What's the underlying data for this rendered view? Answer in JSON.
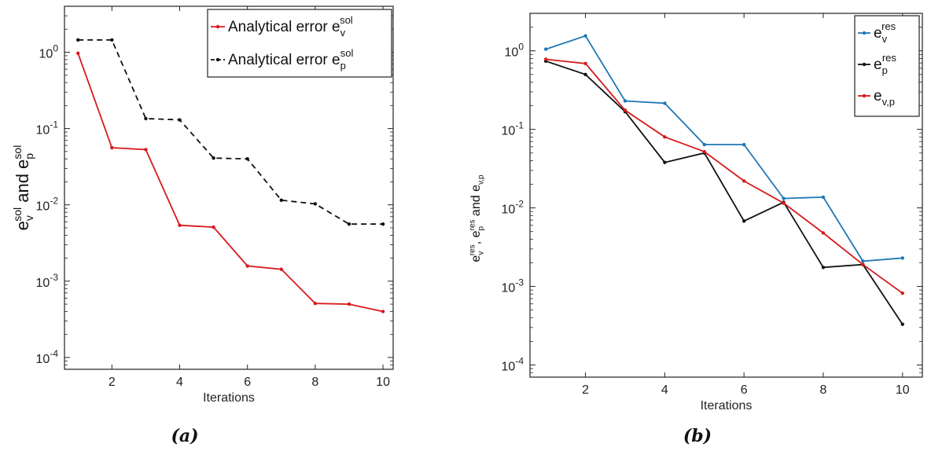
{
  "chart_data": [
    {
      "type": "line",
      "panel": "(a)",
      "xlabel": "Iterations",
      "ylabel": {
        "parts": [
          "e",
          "v",
          "sol",
          " and ",
          "e",
          "p",
          "sol"
        ]
      },
      "yscale": "log",
      "xlim": [
        0.6,
        10.3
      ],
      "ylim": [
        7e-05,
        4
      ],
      "xticks": [
        2,
        4,
        6,
        8,
        10
      ],
      "yticks": [
        {
          "value": 1,
          "exp": "0"
        },
        {
          "value": 0.1,
          "exp": "-1"
        },
        {
          "value": 0.01,
          "exp": "-2"
        },
        {
          "value": 0.001,
          "exp": "-3"
        },
        {
          "value": 0.0001,
          "exp": "-4"
        }
      ],
      "legend_position": "top-right",
      "x": [
        1,
        2,
        3,
        4,
        5,
        6,
        7,
        8,
        9,
        10
      ],
      "series": [
        {
          "name": "Analytical error e",
          "sub": "v",
          "sup": "sol",
          "color": "#d7191c",
          "dash": "solid",
          "values": [
            0.97,
            0.056,
            0.053,
            0.0054,
            0.0051,
            0.00158,
            0.00143,
            0.00051,
            0.0005,
            0.0004
          ]
        },
        {
          "name": "Analytical error e",
          "sub": "p",
          "sup": "sol",
          "color": "#111111",
          "dash": "dashed",
          "values": [
            1.45,
            1.45,
            0.135,
            0.13,
            0.041,
            0.04,
            0.0115,
            0.0103,
            0.0056,
            0.0056
          ]
        }
      ]
    },
    {
      "type": "line",
      "panel": "(b)",
      "xlabel": "Iterations",
      "ylabel": {
        "parts": [
          "e",
          "v",
          "res",
          ", ",
          "e",
          "p",
          "res",
          " and ",
          "e",
          "v,p",
          ""
        ]
      },
      "yscale": "log",
      "xlim": [
        0.6,
        10.5
      ],
      "ylim": [
        7e-05,
        3
      ],
      "xticks": [
        2,
        4,
        6,
        8,
        10
      ],
      "yticks": [
        {
          "value": 1,
          "exp": "0"
        },
        {
          "value": 0.1,
          "exp": "-1"
        },
        {
          "value": 0.01,
          "exp": "-2"
        },
        {
          "value": 0.001,
          "exp": "-3"
        },
        {
          "value": 0.0001,
          "exp": "-4"
        }
      ],
      "legend_position": "top-right",
      "x": [
        1,
        2,
        3,
        4,
        5,
        6,
        7,
        8,
        9,
        10
      ],
      "series": [
        {
          "name": "e",
          "sub": "v",
          "sup": "res",
          "color": "#1f77b4",
          "dash": "solid",
          "values": [
            1.05,
            1.55,
            0.23,
            0.215,
            0.064,
            0.064,
            0.0132,
            0.0137,
            0.0021,
            0.0023
          ]
        },
        {
          "name": "e",
          "sub": "p",
          "sup": "res",
          "color": "#111111",
          "dash": "solid",
          "values": [
            0.74,
            0.5,
            0.168,
            0.038,
            0.05,
            0.0068,
            0.0118,
            0.00175,
            0.0019,
            0.00033
          ]
        },
        {
          "name": "e",
          "sub": "v,p",
          "sup": "",
          "color": "#d7191c",
          "dash": "solid",
          "values": [
            0.78,
            0.69,
            0.175,
            0.08,
            0.052,
            0.022,
            0.0115,
            0.0048,
            0.0019,
            0.00082
          ]
        }
      ]
    }
  ],
  "captions": [
    "(a)",
    "(b)"
  ]
}
